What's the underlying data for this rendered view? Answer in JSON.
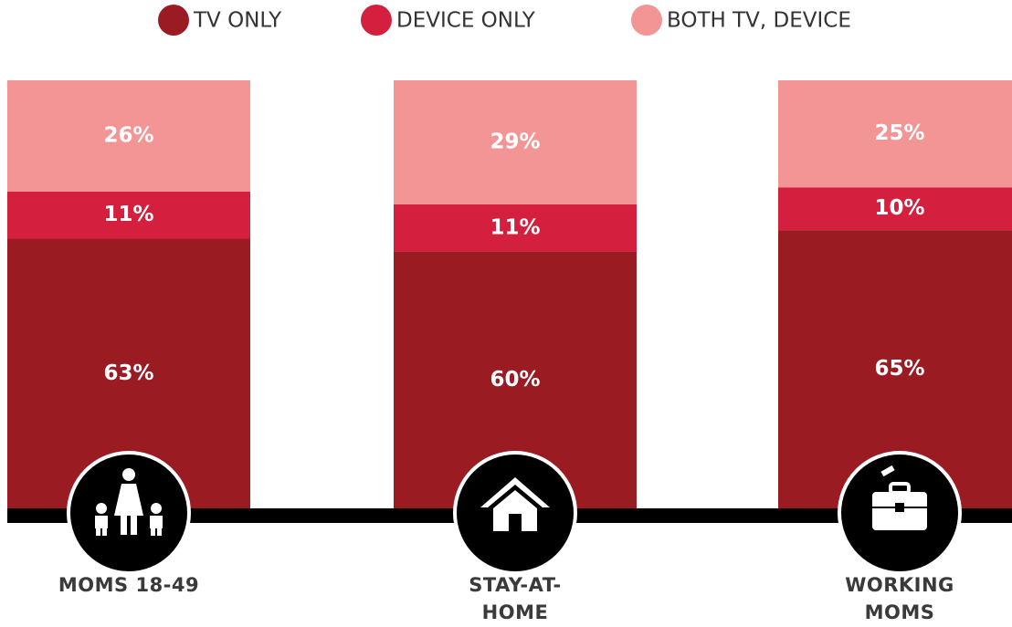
{
  "chart_data": {
    "type": "stacked_bar",
    "categories": [
      "MOMS 18-49",
      "STAY-AT-HOME MOMS",
      "WORKING MOMS"
    ],
    "series": [
      {
        "name": "TV ONLY",
        "color": "#9b1b22",
        "values": [
          63,
          60,
          65
        ],
        "value_labels": [
          "63%",
          "60%",
          "65%"
        ]
      },
      {
        "name": "DEVICE ONLY",
        "color": "#d51f3f",
        "values": [
          11,
          11,
          10
        ],
        "value_labels": [
          "11%",
          "11%",
          "10%"
        ]
      },
      {
        "name": "BOTH TV, DEVICE",
        "color": "#f39595",
        "values": [
          26,
          29,
          25
        ],
        "value_labels": [
          "26%",
          "29%",
          "25%"
        ]
      }
    ],
    "ylim": [
      0,
      100
    ]
  }
}
